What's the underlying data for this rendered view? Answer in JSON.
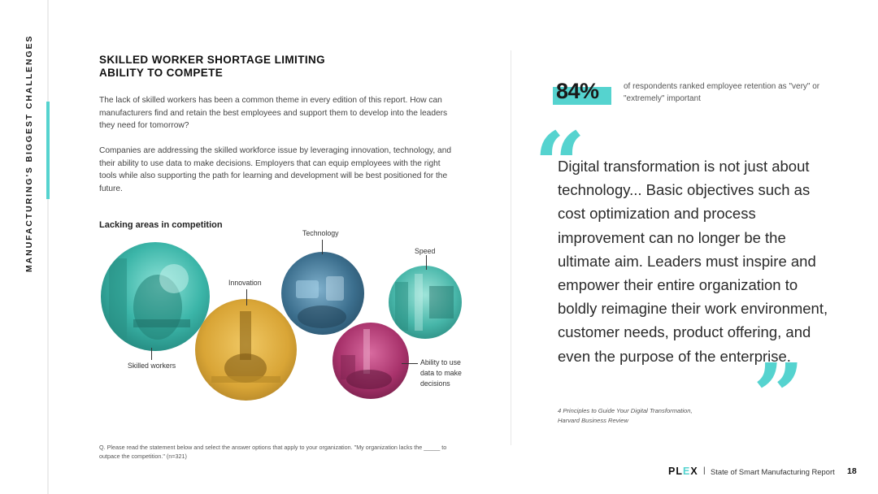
{
  "side_label": "MANUFACTURING'S BIGGEST CHALLENGES",
  "headline": "SKILLED WORKER SHORTAGE LIMITING ABILITY TO COMPETE",
  "paragraphs": [
    "The lack of skilled workers has been a common theme in every edition of this report. How can manufacturers find and retain the best employees and support them to develop into the leaders they need for tomorrow?",
    "Companies are addressing the skilled workforce issue by leveraging innovation, technology, and their ability to use data to make decisions. Employers that can equip employees with the right tools while also supporting the path for learning and development will be best positioned for the future."
  ],
  "chart": {
    "title": "Lacking areas in competition",
    "labels": {
      "skilled": "Skilled workers",
      "innovation": "Innovation",
      "technology": "Technology",
      "speed": "Speed",
      "data": "Ability to use data to make decisions"
    }
  },
  "footnote": "Q. Please read the statement below and select the answer options that apply to your organization. \"My organization lacks the _____ to outpace the competition.\" (n=321)",
  "stat": {
    "value": "84%",
    "text": "of respondents ranked employee retention as \"very\" or \"extremely\" important"
  },
  "quote": {
    "open_mark": "“",
    "close_mark": "”",
    "text": "Digital transformation is not just about technology... Basic objectives such as cost optimization and process improvement can no longer be the ultimate aim. Leaders must inspire and empower their entire organization to boldly reimagine their work environment, customer needs, product offering, and even the purpose of the enterprise.",
    "source_title": "4 Principles to Guide Your Digital Transformation,",
    "source_pub": "Harvard Business Review"
  },
  "footer": {
    "logo_left": "PL",
    "logo_mid": "E",
    "logo_right": "X",
    "separator": "|",
    "report": "State of Smart Manufacturing Report",
    "page": "18"
  },
  "colors": {
    "accent": "#55d3cf",
    "teal_photo": "#3bb5a8",
    "gold_photo": "#d9a536",
    "blue_photo": "#3c6f8e",
    "magenta_photo": "#a8326b"
  }
}
